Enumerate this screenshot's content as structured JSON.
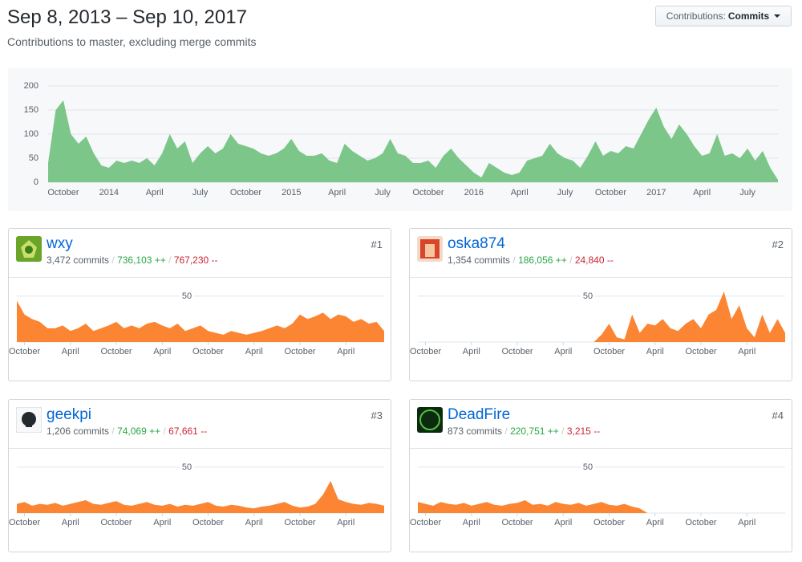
{
  "header": {
    "title": "Sep 8, 2013 – Sep 10, 2017",
    "subtitle": "Contributions to master, excluding merge commits"
  },
  "dropdown": {
    "label": "Contributions:",
    "value": "Commits"
  },
  "stat_separator": "/",
  "contributors": [
    {
      "name": "wxy",
      "rank": "#1",
      "commits": "3,472 commits",
      "additions": "736,103 ++",
      "deletions": "767,230 --"
    },
    {
      "name": "oska874",
      "rank": "#2",
      "commits": "1,354 commits",
      "additions": "186,056 ++",
      "deletions": "24,840 --"
    },
    {
      "name": "geekpi",
      "rank": "#3",
      "commits": "1,206 commits",
      "additions": "74,069 ++",
      "deletions": "67,661 --"
    },
    {
      "name": "DeadFire",
      "rank": "#4",
      "commits": "873 commits",
      "additions": "220,751 ++",
      "deletions": "3,215 --"
    }
  ],
  "chart_data": [
    {
      "type": "area",
      "color": "#7cc68a",
      "ylim": [
        0,
        200
      ],
      "yticks": [
        0,
        50,
        100,
        150,
        200
      ],
      "grid": true,
      "categories": [
        null,
        null,
        "October",
        null,
        null,
        null,
        null,
        null,
        "2014",
        null,
        null,
        null,
        null,
        null,
        "April",
        null,
        null,
        null,
        null,
        null,
        "July",
        null,
        null,
        null,
        null,
        null,
        "October",
        null,
        null,
        null,
        null,
        null,
        "2015",
        null,
        null,
        null,
        null,
        null,
        "April",
        null,
        null,
        null,
        null,
        null,
        "July",
        null,
        null,
        null,
        null,
        null,
        "October",
        null,
        null,
        null,
        null,
        null,
        "2016",
        null,
        null,
        null,
        null,
        null,
        "April",
        null,
        null,
        null,
        null,
        null,
        "July",
        null,
        null,
        null,
        null,
        null,
        "October",
        null,
        null,
        null,
        null,
        null,
        "2017",
        null,
        null,
        null,
        null,
        null,
        "April",
        null,
        null,
        null,
        null,
        null,
        "July",
        null,
        null,
        null,
        null
      ],
      "values": [
        40,
        150,
        170,
        100,
        80,
        95,
        60,
        35,
        30,
        45,
        40,
        45,
        40,
        50,
        35,
        60,
        100,
        70,
        85,
        40,
        60,
        75,
        60,
        70,
        100,
        80,
        75,
        70,
        60,
        55,
        60,
        70,
        90,
        65,
        55,
        55,
        60,
        45,
        40,
        80,
        65,
        55,
        45,
        50,
        60,
        90,
        60,
        55,
        40,
        40,
        45,
        30,
        55,
        70,
        50,
        35,
        20,
        10,
        40,
        30,
        20,
        15,
        20,
        45,
        50,
        55,
        80,
        60,
        50,
        45,
        30,
        55,
        85,
        55,
        65,
        60,
        75,
        70,
        100,
        130,
        155,
        115,
        90,
        120,
        100,
        75,
        55,
        60,
        100,
        55,
        60,
        50,
        70,
        45,
        65,
        30,
        5
      ]
    },
    {
      "type": "area",
      "color": "#fb8532",
      "ylim": [
        0,
        70
      ],
      "yticks": [
        50
      ],
      "grid": true,
      "categories": [
        null,
        "October",
        null,
        null,
        null,
        null,
        null,
        "April",
        null,
        null,
        null,
        null,
        null,
        "October",
        null,
        null,
        null,
        null,
        null,
        "April",
        null,
        null,
        null,
        null,
        null,
        "October",
        null,
        null,
        null,
        null,
        null,
        "April",
        null,
        null,
        null,
        null,
        null,
        "October",
        null,
        null,
        null,
        null,
        null,
        "April",
        null,
        null,
        null,
        null,
        null
      ],
      "values": [
        45,
        30,
        25,
        22,
        15,
        15,
        18,
        12,
        15,
        20,
        12,
        15,
        18,
        22,
        15,
        18,
        15,
        20,
        22,
        18,
        15,
        20,
        12,
        15,
        18,
        12,
        10,
        8,
        12,
        10,
        8,
        10,
        12,
        15,
        18,
        15,
        20,
        30,
        25,
        28,
        32,
        25,
        30,
        28,
        22,
        25,
        20,
        22,
        12
      ]
    },
    {
      "type": "area",
      "color": "#fb8532",
      "ylim": [
        0,
        70
      ],
      "yticks": [
        50
      ],
      "grid": true,
      "categories": [
        null,
        "October",
        null,
        null,
        null,
        null,
        null,
        "April",
        null,
        null,
        null,
        null,
        null,
        "October",
        null,
        null,
        null,
        null,
        null,
        "April",
        null,
        null,
        null,
        null,
        null,
        "October",
        null,
        null,
        null,
        null,
        null,
        "April",
        null,
        null,
        null,
        null,
        null,
        "October",
        null,
        null,
        null,
        null,
        null,
        "April",
        null,
        null,
        null,
        null,
        null
      ],
      "values": [
        0,
        0,
        0,
        0,
        0,
        0,
        0,
        0,
        0,
        0,
        0,
        0,
        0,
        0,
        0,
        0,
        0,
        0,
        0,
        0,
        0,
        0,
        0,
        0,
        8,
        20,
        5,
        3,
        30,
        10,
        20,
        18,
        25,
        15,
        12,
        20,
        25,
        15,
        30,
        35,
        55,
        25,
        40,
        15,
        5,
        30,
        10,
        25,
        10
      ]
    },
    {
      "type": "area",
      "color": "#fb8532",
      "ylim": [
        0,
        70
      ],
      "yticks": [
        50
      ],
      "grid": true,
      "categories": [
        null,
        "October",
        null,
        null,
        null,
        null,
        null,
        "April",
        null,
        null,
        null,
        null,
        null,
        "October",
        null,
        null,
        null,
        null,
        null,
        "April",
        null,
        null,
        null,
        null,
        null,
        "October",
        null,
        null,
        null,
        null,
        null,
        "April",
        null,
        null,
        null,
        null,
        null,
        "October",
        null,
        null,
        null,
        null,
        null,
        "April",
        null,
        null,
        null,
        null,
        null
      ],
      "values": [
        10,
        12,
        8,
        10,
        9,
        11,
        8,
        10,
        12,
        14,
        10,
        9,
        11,
        13,
        9,
        8,
        10,
        12,
        9,
        8,
        10,
        7,
        9,
        8,
        10,
        12,
        8,
        7,
        9,
        8,
        6,
        5,
        7,
        8,
        10,
        12,
        8,
        6,
        7,
        10,
        20,
        35,
        15,
        12,
        10,
        9,
        11,
        10,
        8
      ]
    },
    {
      "type": "area",
      "color": "#fb8532",
      "ylim": [
        0,
        70
      ],
      "yticks": [
        50
      ],
      "grid": true,
      "categories": [
        null,
        "October",
        null,
        null,
        null,
        null,
        null,
        "April",
        null,
        null,
        null,
        null,
        null,
        "October",
        null,
        null,
        null,
        null,
        null,
        "April",
        null,
        null,
        null,
        null,
        null,
        "October",
        null,
        null,
        null,
        null,
        null,
        "April",
        null,
        null,
        null,
        null,
        null,
        "October",
        null,
        null,
        null,
        null,
        null,
        "April",
        null,
        null,
        null,
        null,
        null
      ],
      "values": [
        12,
        10,
        8,
        12,
        10,
        9,
        11,
        8,
        10,
        12,
        9,
        8,
        10,
        11,
        14,
        9,
        10,
        8,
        12,
        10,
        9,
        11,
        8,
        10,
        12,
        9,
        8,
        10,
        7,
        5,
        0,
        0,
        0,
        0,
        0,
        0,
        0,
        0,
        0,
        0,
        0,
        0,
        0,
        0,
        0,
        0,
        0,
        0,
        0
      ]
    }
  ]
}
